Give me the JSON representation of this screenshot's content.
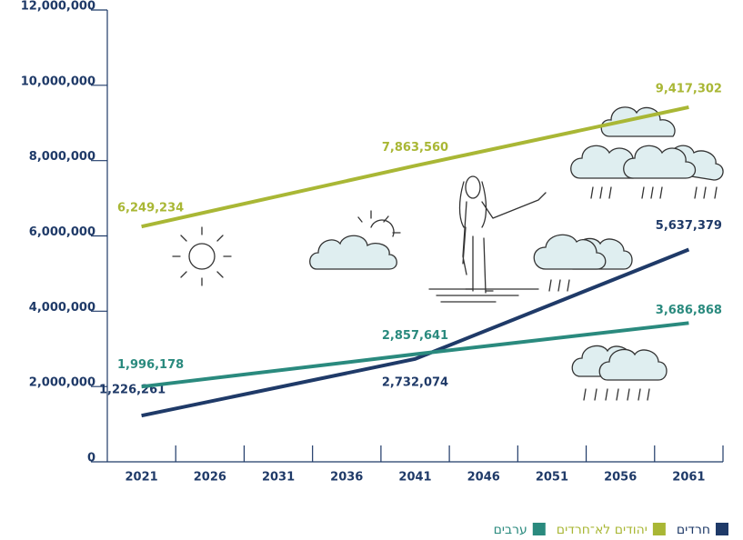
{
  "chart_data": {
    "type": "line",
    "xlim": [
      2018.5,
      2063.5
    ],
    "xticks": [
      2021,
      2026,
      2031,
      2036,
      2041,
      2046,
      2051,
      2056,
      2061
    ],
    "ylim": [
      0,
      12000000
    ],
    "yticks": [
      0,
      {
        "value": 2000000,
        "label": "2,000,000"
      },
      {
        "value": 4000000,
        "label": "4,000,000"
      },
      {
        "value": 6000000,
        "label": "6,000,000"
      },
      {
        "value": 8000000,
        "label": "8,000,000"
      },
      {
        "value": 10000000,
        "label": "10,000,000"
      },
      {
        "value": 12000000,
        "label": "12,000,000"
      }
    ],
    "legend": "bottom-right",
    "series": [
      {
        "name": "חרדים",
        "color": "#1f3a68",
        "x": [
          2021,
          2041,
          2061
        ],
        "values": [
          1226261,
          2732074,
          5637379
        ],
        "value_labels": [
          "1,226,261",
          "2,732,074",
          "5,637,379"
        ]
      },
      {
        "name": "יהודים לא־חרדים",
        "color": "#a9b735",
        "x": [
          2021,
          2041,
          2061
        ],
        "values": [
          6249234,
          7863560,
          9417302
        ],
        "value_labels": [
          "6,249,234",
          "7,863,560",
          "9,417,302"
        ]
      },
      {
        "name": "ערבים",
        "color": "#2a8a7e",
        "x": [
          2021,
          2041,
          2061
        ],
        "values": [
          1996178,
          2857641,
          3686868
        ],
        "value_labels": [
          "1,996,178",
          "2,857,641",
          "3,686,868"
        ]
      }
    ]
  }
}
